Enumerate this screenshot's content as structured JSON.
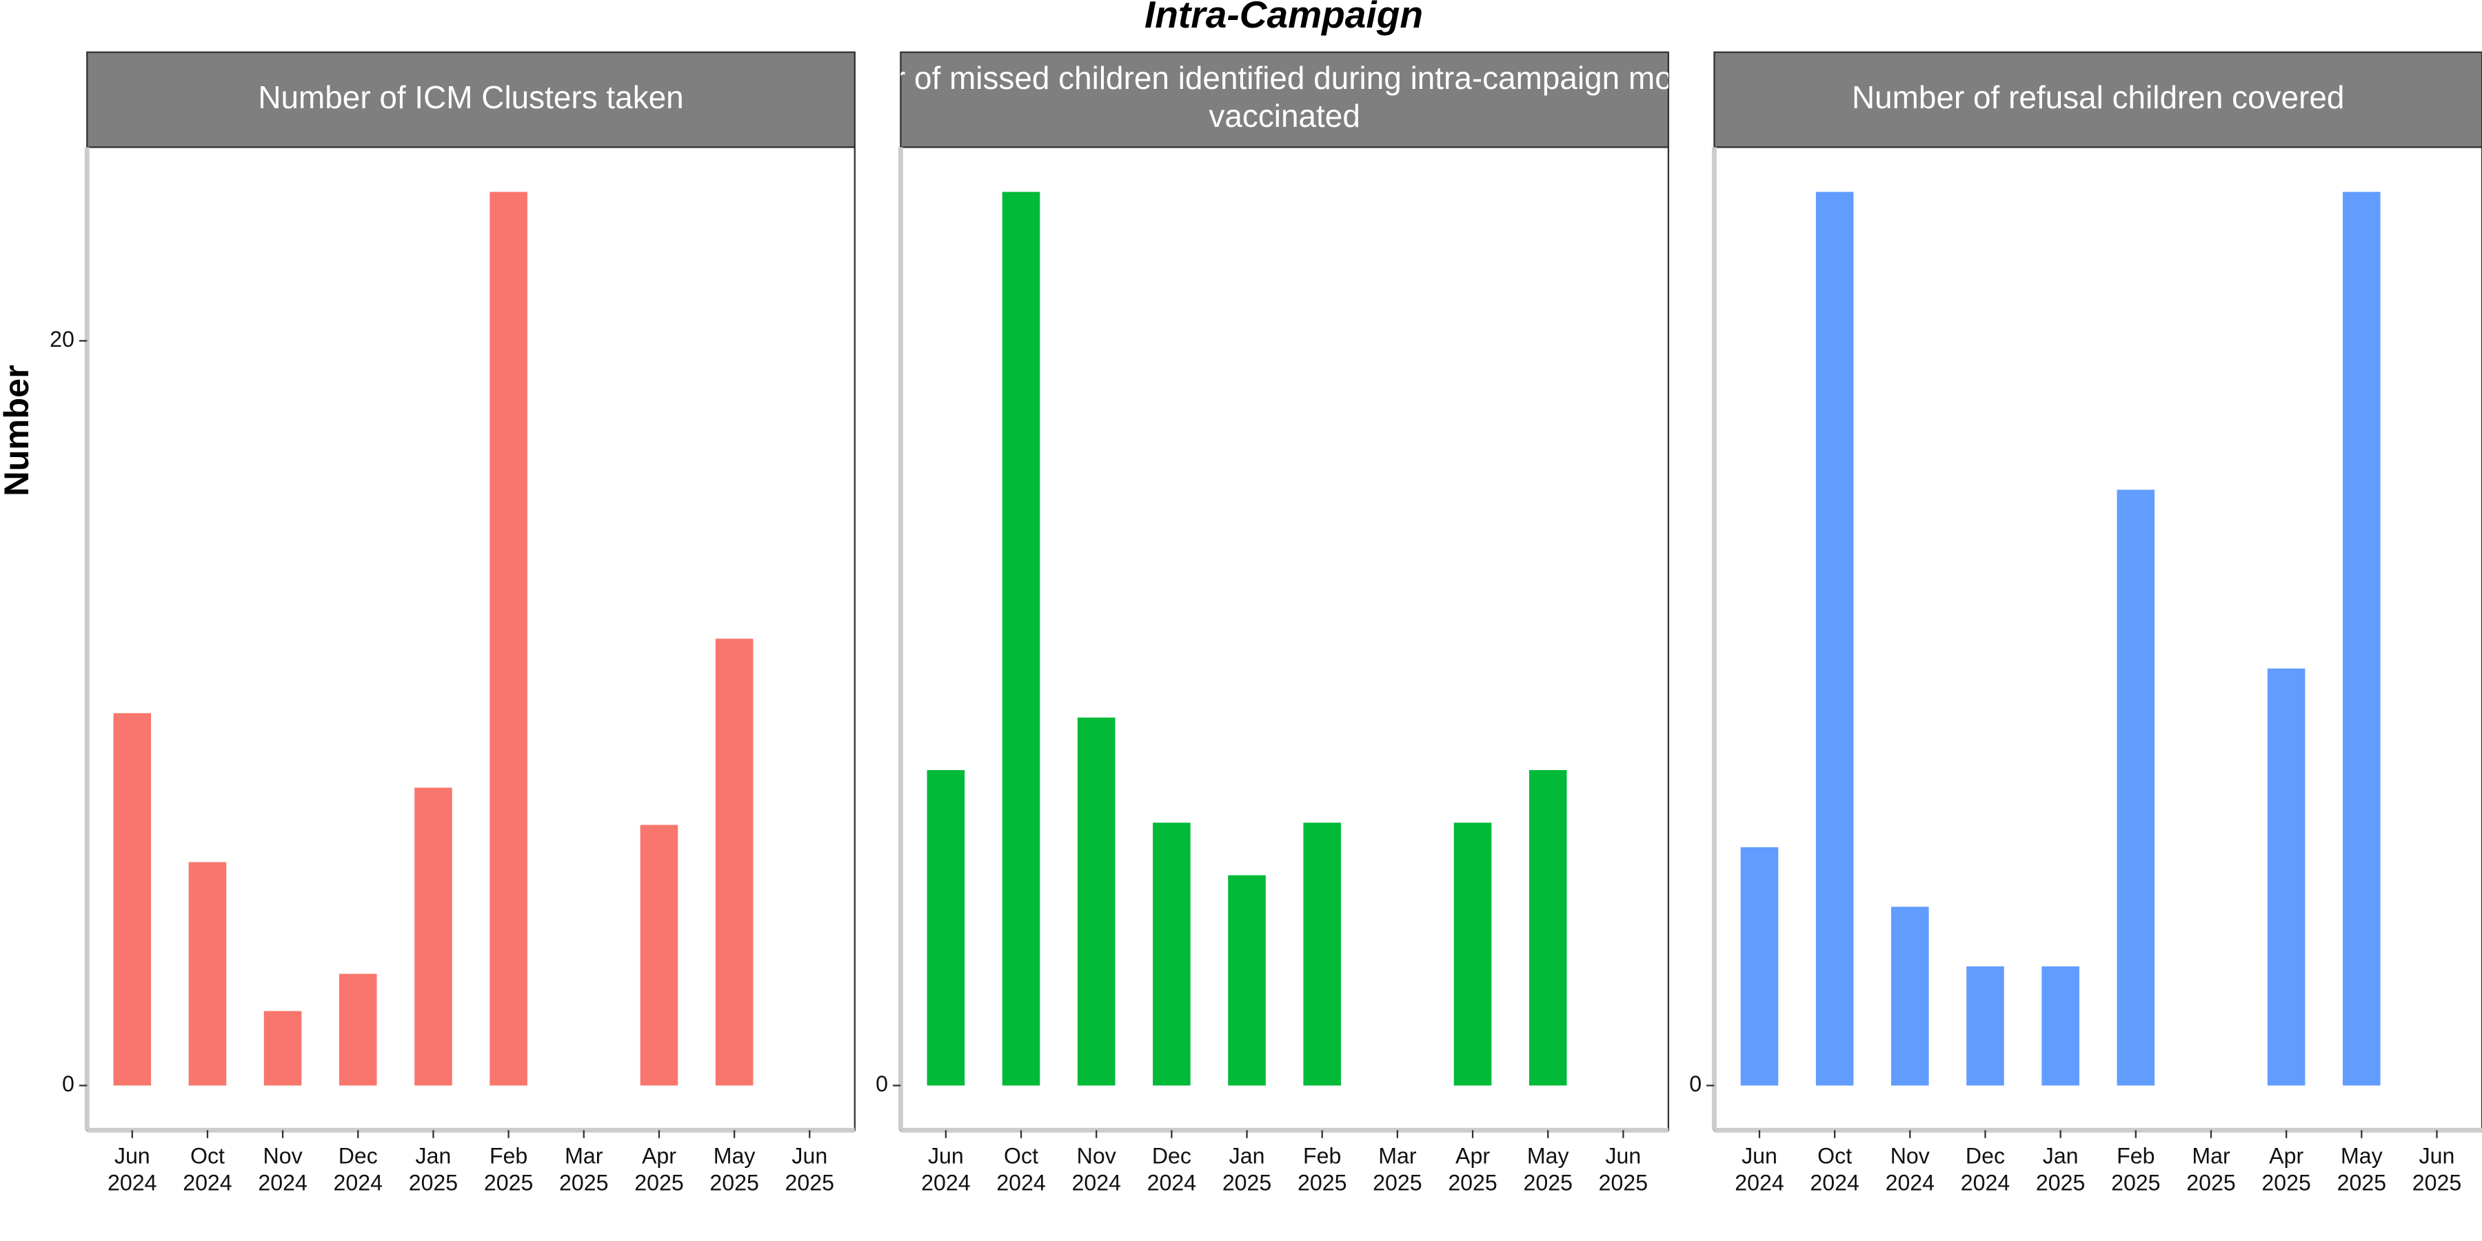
{
  "title": "Intra-Campaign",
  "ylabel": "Number",
  "chart_data": [
    {
      "type": "bar",
      "title": "Number of ICM Clusters taken",
      "categories": [
        "Jun\n2024",
        "Oct\n2024",
        "Nov\n2024",
        "Dec\n2024",
        "Jan\n2025",
        "Feb\n2025",
        "Mar\n2025",
        "Apr\n2025",
        "May\n2025",
        "Jun\n2025"
      ],
      "values": [
        10,
        6,
        2,
        3,
        8,
        24,
        null,
        7,
        12,
        null
      ],
      "color": "#F8766D",
      "ylim": [
        -1.2,
        25.2
      ],
      "yticks": [
        0,
        20
      ]
    },
    {
      "type": "bar",
      "title": "Number of missed children identified during intra-campaign monitoring\nvaccinated",
      "categories": [
        "Jun\n2024",
        "Oct\n2024",
        "Nov\n2024",
        "Dec\n2024",
        "Jan\n2025",
        "Feb\n2025",
        "Mar\n2025",
        "Apr\n2025",
        "May\n2025",
        "Jun\n2025"
      ],
      "values": [
        6,
        17,
        7,
        5,
        4,
        5,
        null,
        5,
        6,
        null
      ],
      "color": "#00BA38",
      "ylim": [
        -0.85,
        17.85
      ],
      "yticks": [
        0
      ]
    },
    {
      "type": "bar",
      "title": "Number of refusal children covered",
      "categories": [
        "Jun\n2024",
        "Oct\n2024",
        "Nov\n2024",
        "Dec\n2024",
        "Jan\n2025",
        "Feb\n2025",
        "Mar\n2025",
        "Apr\n2025",
        "May\n2025",
        "Jun\n2025"
      ],
      "values": [
        4,
        15,
        3,
        2,
        2,
        10,
        null,
        7,
        15,
        null
      ],
      "color": "#619CFF",
      "ylim": [
        -0.75,
        15.75
      ],
      "yticks": [
        0
      ]
    }
  ]
}
